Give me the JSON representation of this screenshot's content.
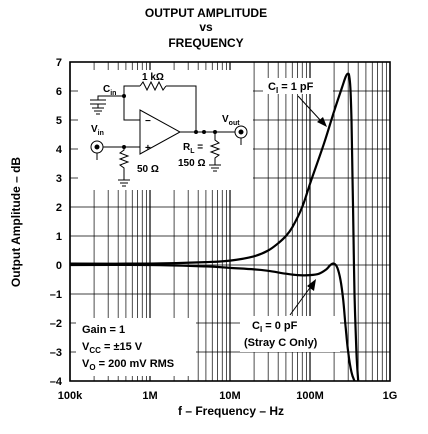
{
  "chart_data": {
    "type": "line",
    "title": [
      "OUTPUT AMPLITUDE",
      "vs",
      "FREQUENCY"
    ],
    "xlabel": "f – Frequency – Hz",
    "ylabel": "Output Amplitude – dB",
    "x_scale": "log",
    "xlim": [
      100000,
      1000000000
    ],
    "ylim": [
      -4,
      7
    ],
    "grid": true,
    "x_ticks": [
      {
        "value": 100000,
        "label": "100k"
      },
      {
        "value": 1000000,
        "label": "1M"
      },
      {
        "value": 10000000,
        "label": "10M"
      },
      {
        "value": 100000000,
        "label": "100M"
      },
      {
        "value": 1000000000,
        "label": "1G"
      }
    ],
    "y_ticks": [
      {
        "value": 7,
        "label": "7"
      },
      {
        "value": 6,
        "label": "6"
      },
      {
        "value": 5,
        "label": "5"
      },
      {
        "value": 4,
        "label": "4"
      },
      {
        "value": 3,
        "label": "3"
      },
      {
        "value": 2,
        "label": "2"
      },
      {
        "value": 1,
        "label": "1"
      },
      {
        "value": 0,
        "label": "0"
      },
      {
        "value": -1,
        "label": "–1"
      },
      {
        "value": -2,
        "label": "–2"
      },
      {
        "value": -3,
        "label": "–3"
      },
      {
        "value": -4,
        "label": "–4"
      }
    ],
    "series": [
      {
        "label_main": "C",
        "label_sub": "I",
        "label_rest": " = 1 pF",
        "x": [
          100000,
          1000000,
          5000000,
          10000000,
          20000000,
          30000000,
          40000000,
          50000000,
          60000000,
          80000000,
          100000000,
          150000000,
          200000000,
          250000000,
          280000000,
          300000000,
          310000000,
          320000000,
          330000000,
          340000000,
          350000000,
          360000000,
          380000000,
          400000000
        ],
        "y": [
          0.05,
          0.05,
          0.1,
          0.15,
          0.3,
          0.5,
          0.75,
          1.0,
          1.3,
          2.0,
          2.8,
          4.2,
          5.3,
          6.1,
          6.5,
          6.6,
          6.5,
          6.1,
          5.0,
          3.0,
          1.0,
          -1.0,
          -3.0,
          -4.0
        ]
      },
      {
        "label_main": "C",
        "label_sub": "I",
        "label_rest": " = 0 pF",
        "label_line2": "(Stray C Only)",
        "x": [
          100000,
          1000000,
          5000000,
          10000000,
          20000000,
          30000000,
          50000000,
          70000000,
          100000000,
          130000000,
          160000000,
          180000000,
          200000000,
          220000000,
          240000000,
          260000000,
          280000000,
          300000000,
          330000000,
          360000000
        ],
        "y": [
          0.0,
          0.0,
          -0.05,
          -0.1,
          -0.15,
          -0.2,
          -0.3,
          -0.35,
          -0.35,
          -0.3,
          -0.15,
          0.0,
          0.05,
          -0.1,
          -0.5,
          -1.2,
          -2.2,
          -3.0,
          -3.7,
          -4.0
        ]
      }
    ],
    "conditions": [
      {
        "text": "Gain = 1"
      },
      {
        "main": "V",
        "sub": "CC",
        "rest": " = ±15 V"
      },
      {
        "main": "V",
        "sub": "O",
        "rest": " = 200 mV RMS"
      }
    ]
  },
  "schematic": {
    "feedback_resistor": "1 kΩ",
    "input_cap": {
      "main": "C",
      "sub": "in"
    },
    "input_node": {
      "main": "V",
      "sub": "in"
    },
    "output_node": {
      "main": "V",
      "sub": "out"
    },
    "input_resistor": "50 Ω",
    "load_resistor_name": {
      "main": "R",
      "sub": "L"
    },
    "load_resistor_value": "150 Ω",
    "minus": "−",
    "plus": "+"
  }
}
